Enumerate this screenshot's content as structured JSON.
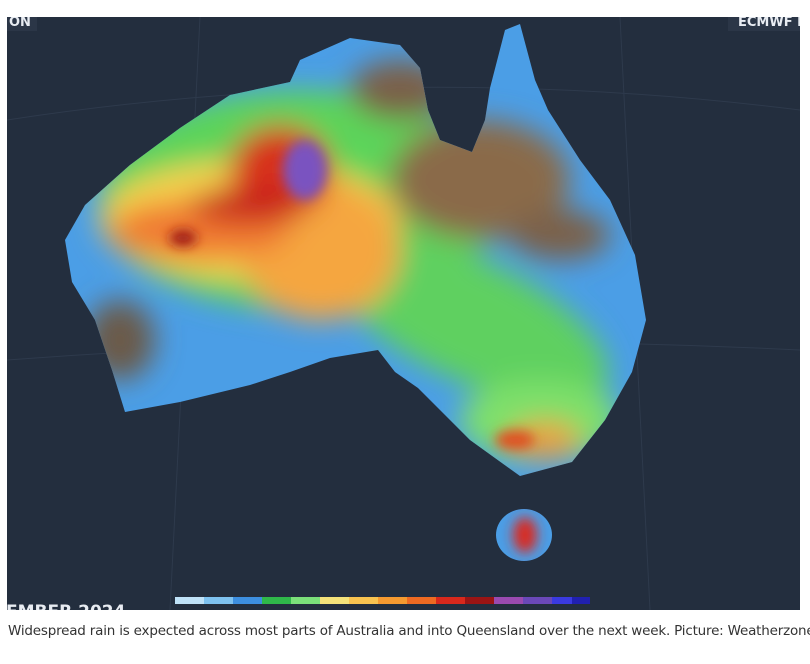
{
  "map": {
    "labels": [
      "ON",
      "ECMWF F",
      "EMBER 2024"
    ],
    "caption": "Widespread rain is expected across most parts of Australia and into Queensland over the next week. Picture: Weatherzone"
  }
}
